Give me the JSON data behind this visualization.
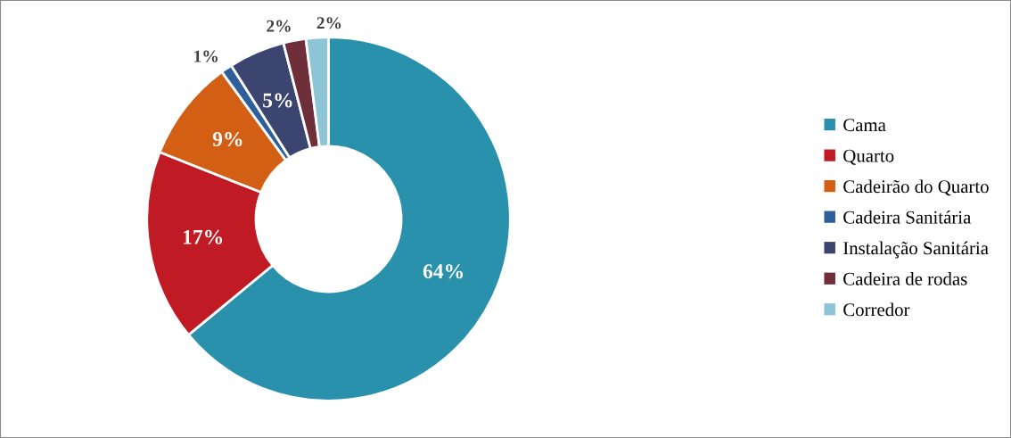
{
  "chart_data": {
    "type": "donut",
    "categories": [
      "Cama",
      "Quarto",
      "Cadeirão do Quarto",
      "Cadeira Sanitária",
      "Instalação Sanitária",
      "Cadeira de rodas",
      "Corredor"
    ],
    "values": [
      64,
      17,
      9,
      1,
      5,
      2,
      2
    ],
    "colors": [
      "#2a91ad",
      "#c01a24",
      "#d35f15",
      "#2f5f9a",
      "#3c4570",
      "#6e2e3a",
      "#8dc4d6"
    ],
    "value_labels": [
      "64%",
      "17%",
      "9%",
      "1%",
      "5%",
      "2%",
      "2%"
    ],
    "legend": "right"
  }
}
